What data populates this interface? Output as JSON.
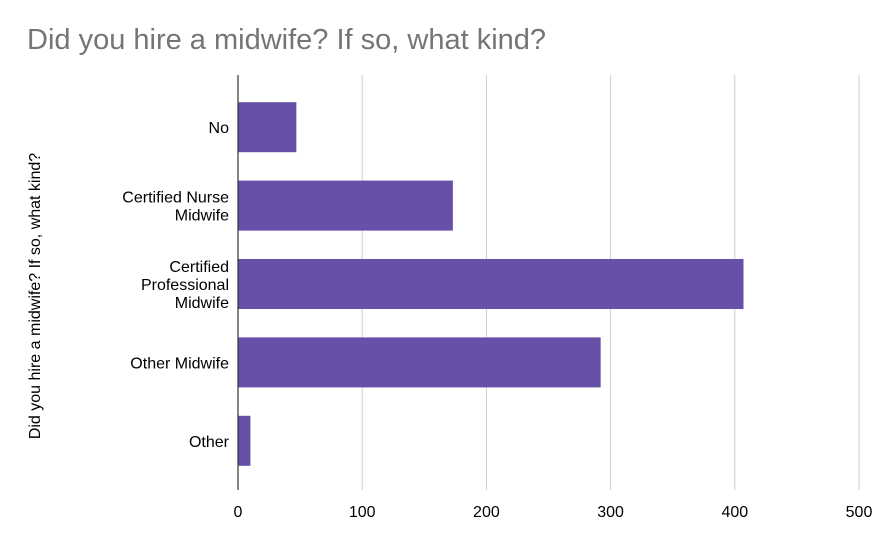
{
  "chart_data": {
    "type": "bar",
    "orientation": "horizontal",
    "title": "Did you hire a midwife? If so, what kind?",
    "ylabel": "Did you hire a midwife? If so, what kind?",
    "xlabel": "",
    "categories": [
      [
        "No"
      ],
      [
        "Certified Nurse",
        "Midwife"
      ],
      [
        "Certified",
        "Professional",
        "Midwife"
      ],
      [
        "Other Midwife"
      ],
      [
        "Other"
      ]
    ],
    "values": [
      47,
      173,
      407,
      292,
      10
    ],
    "xlim": [
      0,
      500
    ],
    "xticks": [
      0,
      100,
      200,
      300,
      400,
      500
    ],
    "grid": true,
    "legend": "none",
    "colors": {
      "bar": "#6750a8",
      "grid": "#cccccc",
      "axis": "#333333",
      "title": "#757575"
    }
  }
}
